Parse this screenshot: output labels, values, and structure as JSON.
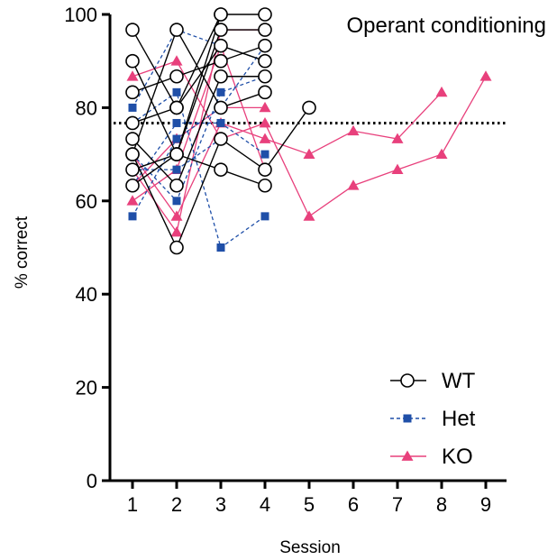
{
  "chart_data": {
    "type": "line",
    "title": "Operant conditioning",
    "xlabel": "Session",
    "ylabel": "% correct",
    "xlim": [
      0.5,
      9.5
    ],
    "ylim": [
      0,
      100
    ],
    "xticks": [
      "1",
      "2",
      "3",
      "4",
      "5",
      "6",
      "7",
      "8",
      "9"
    ],
    "yticks": [
      "0",
      "20",
      "40",
      "60",
      "80",
      "100"
    ],
    "criterion_line": 76.7,
    "legend_position": "bottom-right",
    "colors": {
      "WT": "#000000",
      "Het": "#1f4fa8",
      "KO": "#e8407c"
    },
    "series": [
      {
        "name": "WT",
        "lines": [
          {
            "x": [
              1,
              2,
              3,
              4
            ],
            "y": [
              96.7,
              80,
              100,
              100
            ]
          },
          {
            "x": [
              1,
              2,
              3,
              4
            ],
            "y": [
              90,
              70,
              96.7,
              96.7
            ]
          },
          {
            "x": [
              1,
              2,
              3,
              4
            ],
            "y": [
              83.3,
              86.7,
              90,
              93.3
            ]
          },
          {
            "x": [
              1,
              2,
              3,
              4
            ],
            "y": [
              76.7,
              80,
              93.3,
              90
            ]
          },
          {
            "x": [
              1,
              2,
              3,
              4
            ],
            "y": [
              73.3,
              63.3,
              86.7,
              86.7
            ]
          },
          {
            "x": [
              1,
              2,
              3,
              4
            ],
            "y": [
              70,
              96.7,
              80,
              83.3
            ]
          },
          {
            "x": [
              1,
              2,
              3,
              4
            ],
            "y": [
              66.7,
              70,
              66.7,
              63.3
            ]
          },
          {
            "x": [
              1,
              2,
              3,
              4,
              5
            ],
            "y": [
              70,
              50,
              73.3,
              66.7,
              80
            ]
          },
          {
            "x": [
              1,
              2,
              3
            ],
            "y": [
              63.3,
              70,
              100
            ]
          }
        ]
      },
      {
        "name": "Het",
        "lines": [
          {
            "x": [
              1,
              2,
              3,
              4
            ],
            "y": [
              80,
              96.7,
              93.3,
              90
            ]
          },
          {
            "x": [
              1,
              2,
              3,
              4
            ],
            "y": [
              76.7,
              83.3,
              50,
              56.7
            ]
          },
          {
            "x": [
              1,
              2,
              3,
              4
            ],
            "y": [
              70,
              60,
              83.3,
              86.7
            ]
          },
          {
            "x": [
              1,
              2,
              3,
              4
            ],
            "y": [
              63.3,
              76.7,
              76.7,
              70
            ]
          },
          {
            "x": [
              1,
              2,
              3,
              4
            ],
            "y": [
              56.7,
              73.3,
              80,
              93.3
            ]
          },
          {
            "x": [
              1,
              2,
              3
            ],
            "y": [
              66.7,
              66.7,
              73.3
            ]
          }
        ]
      },
      {
        "name": "KO",
        "lines": [
          {
            "x": [
              1,
              2,
              3,
              4,
              5,
              6,
              7,
              8,
              9
            ],
            "y": [
              86.7,
              90,
              73.3,
              76.7,
              56.7,
              63.3,
              66.7,
              70,
              86.7
            ]
          },
          {
            "x": [
              1,
              2,
              3,
              4,
              5,
              6,
              7,
              8
            ],
            "y": [
              70,
              56.7,
              76.7,
              73.3,
              70,
              75,
              73.3,
              83.3
            ]
          },
          {
            "x": [
              1,
              2,
              3,
              4
            ],
            "y": [
              60,
              66.7,
              93.3,
              66.7
            ]
          },
          {
            "x": [
              1,
              2,
              3,
              4
            ],
            "y": [
              66.7,
              53.3,
              96.7,
              96.7
            ]
          },
          {
            "x": [
              1,
              2,
              3,
              4
            ],
            "y": [
              63.3,
              73.3,
              80,
              80
            ]
          }
        ]
      }
    ]
  }
}
